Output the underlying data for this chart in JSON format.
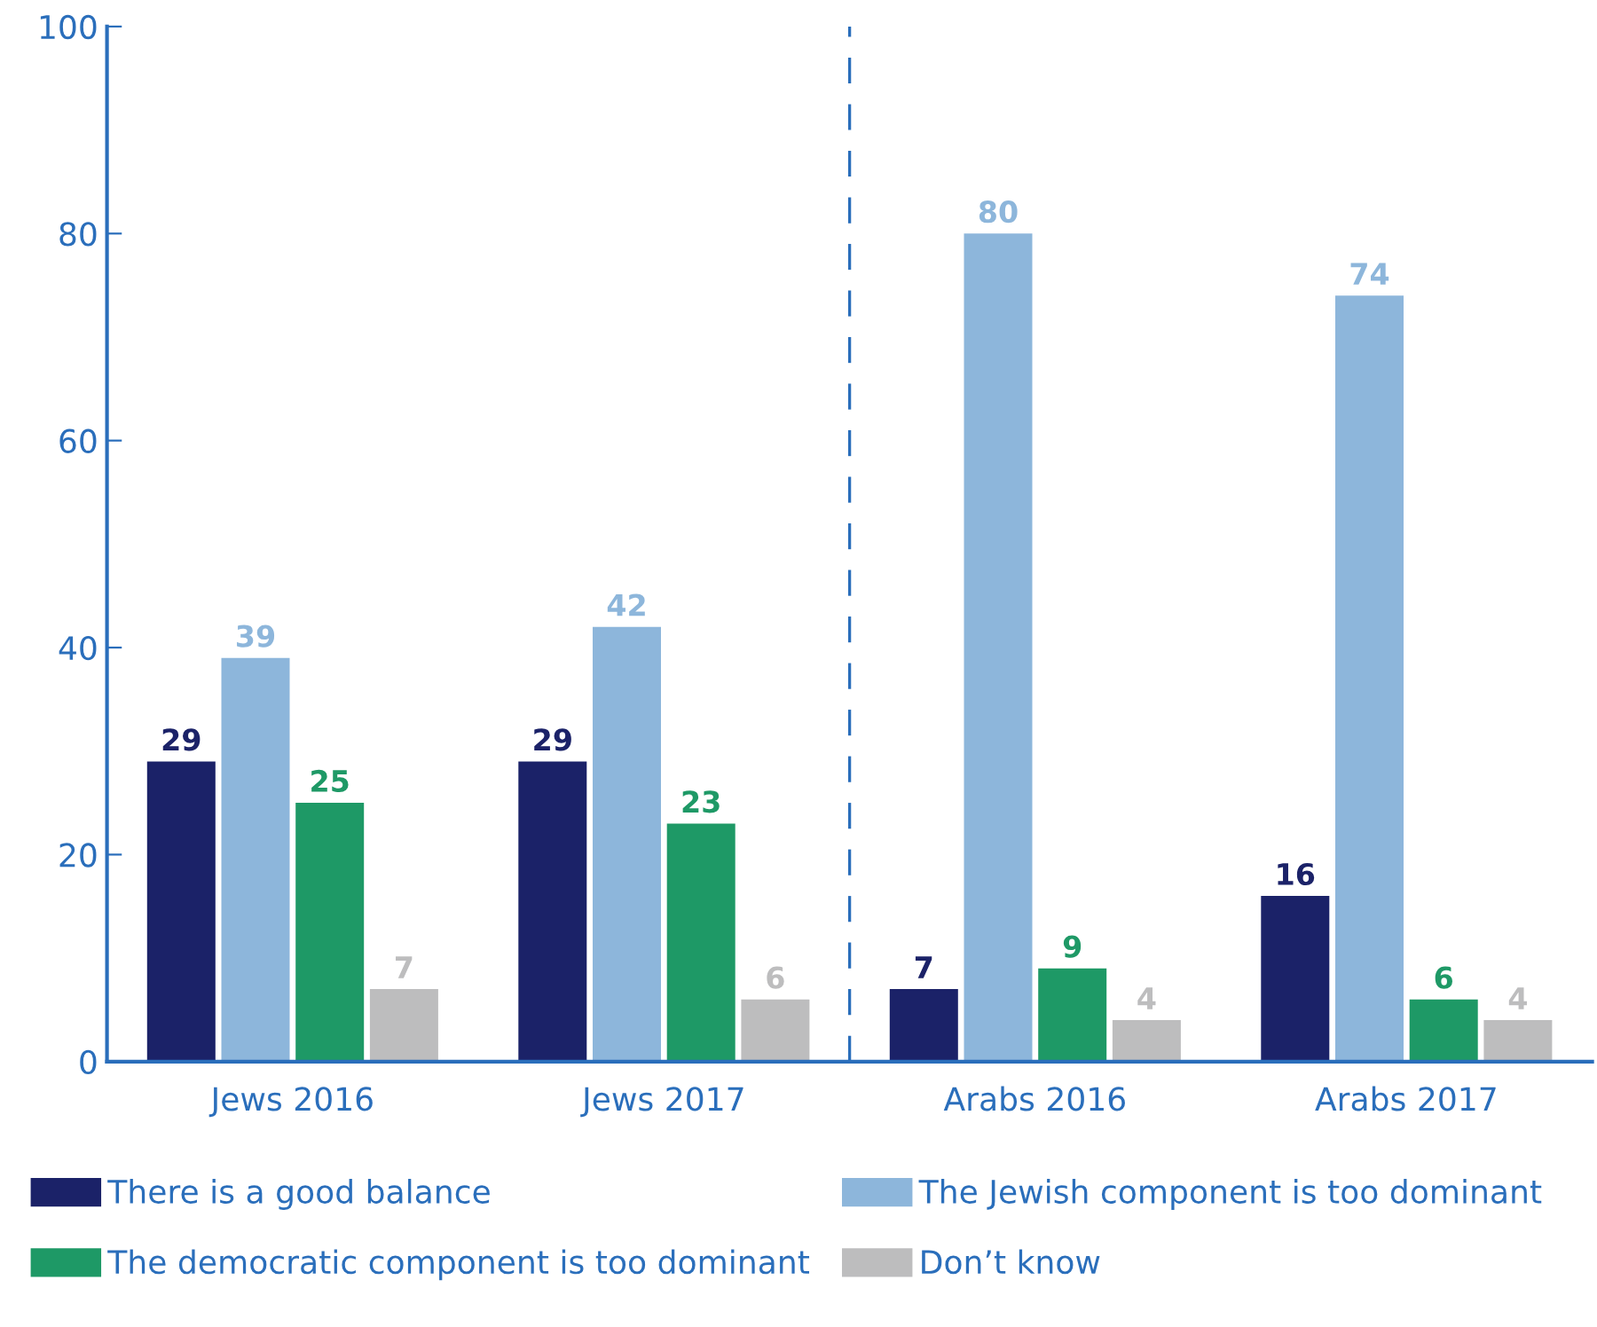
{
  "chart_data": {
    "type": "bar",
    "categories": [
      "Jews 2016",
      "Jews 2017",
      "Arabs 2016",
      "Arabs 2017"
    ],
    "series": [
      {
        "name": "There is a good balance",
        "color": "#1b2268",
        "values": [
          29,
          29,
          7,
          16
        ]
      },
      {
        "name": "The Jewish component is too dominant",
        "color": "#8db6db",
        "values": [
          39,
          42,
          80,
          74
        ]
      },
      {
        "name": "The democratic component is too dominant",
        "color": "#1e9966",
        "values": [
          25,
          23,
          9,
          6
        ]
      },
      {
        "name": "Don’t know",
        "color": "#bdbdbe",
        "values": [
          7,
          6,
          4,
          4
        ]
      }
    ],
    "ylim": [
      0,
      100
    ],
    "yticks": [
      0,
      20,
      40,
      60,
      80,
      100
    ],
    "data_labels": true,
    "grid": false,
    "legend": "bottom"
  }
}
